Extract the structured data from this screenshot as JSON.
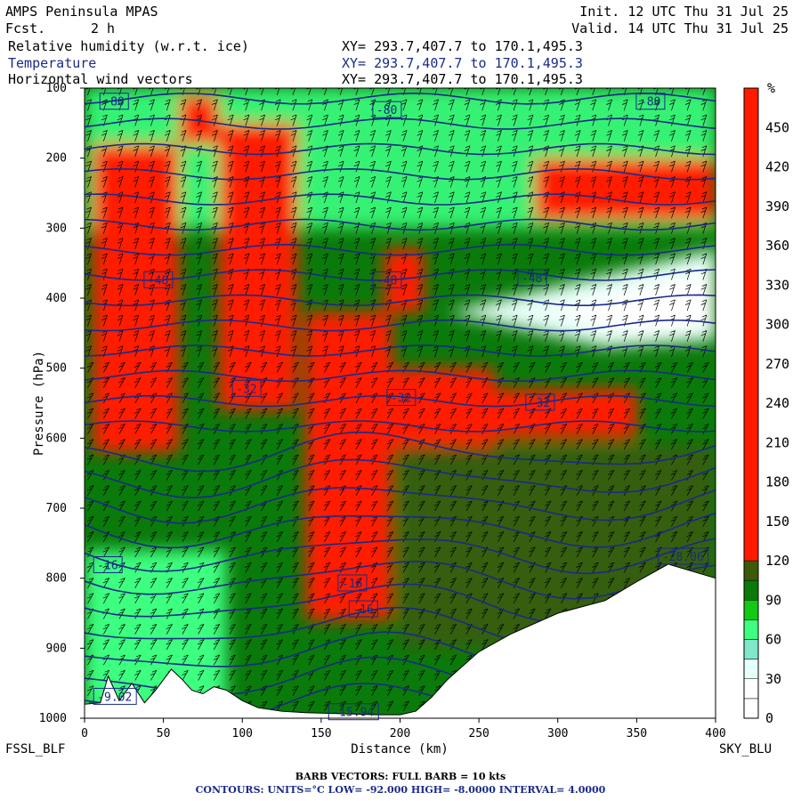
{
  "header": {
    "model": "AMPS Peninsula MPAS",
    "fcst_label": "Fcst.",
    "fcst_value": "2 h",
    "init": "Init. 12 UTC Thu 31 Jul 25",
    "valid": "Valid. 14 UTC Thu 31 Jul 25",
    "fields": [
      {
        "name": "Relative humidity (w.r.t. ice)",
        "xy": "XY= 293.7,407.7 to 170.1,495.3",
        "color": "#000000"
      },
      {
        "name": "Temperature",
        "xy": "XY= 293.7,407.7 to 170.1,495.3",
        "color": "#1a2a8a"
      },
      {
        "name": "Horizontal wind vectors",
        "xy": "XY= 293.7,407.7 to 170.1,495.3",
        "color": "#000000"
      }
    ]
  },
  "chart_data": {
    "type": "heatmap",
    "xlabel": "Distance (km)",
    "ylabel": "Pressure (hPa)",
    "xlim": [
      0,
      400
    ],
    "ylim": [
      1000,
      100
    ],
    "x_ticks": [
      0,
      50,
      100,
      150,
      200,
      250,
      300,
      350,
      400
    ],
    "y_ticks": [
      100,
      200,
      300,
      400,
      500,
      600,
      700,
      800,
      900,
      1000
    ],
    "left_endpoint": "FSSL_BLF",
    "right_endpoint": "SKY_BLU",
    "colorbar": {
      "unit": "%",
      "ticks": [
        0,
        30,
        60,
        90,
        120,
        150,
        180,
        210,
        240,
        270,
        300,
        330,
        360,
        390,
        420,
        450
      ],
      "levels": [
        {
          "from": 0,
          "to": 15,
          "color": "#ffffff"
        },
        {
          "from": 15,
          "to": 30,
          "color": "#ffffff"
        },
        {
          "from": 30,
          "to": 45,
          "color": "#e6fff8"
        },
        {
          "from": 45,
          "to": 60,
          "color": "#7ee8c8"
        },
        {
          "from": 60,
          "to": 75,
          "color": "#3cff80"
        },
        {
          "from": 75,
          "to": 90,
          "color": "#14c814"
        },
        {
          "from": 90,
          "to": 105,
          "color": "#0a7a0a"
        },
        {
          "from": 105,
          "to": 120,
          "color": "#3d5a0a"
        },
        {
          "from": 120,
          "to": 480,
          "color": "#ff1a00"
        }
      ]
    },
    "temperature_contours": {
      "units": "°C",
      "low": -92,
      "high": -8,
      "interval": 4,
      "labels": [
        {
          "text": "-80",
          "x": 12,
          "p": 120
        },
        {
          "text": "-80",
          "x": 185,
          "p": 132
        },
        {
          "text": "-80",
          "x": 352,
          "p": 120
        },
        {
          "text": "-48",
          "x": 40,
          "p": 375
        },
        {
          "text": "-48",
          "x": 185,
          "p": 375
        },
        {
          "text": "-48",
          "x": 277,
          "p": 372
        },
        {
          "text": "-32",
          "x": 96,
          "p": 530
        },
        {
          "text": "-32",
          "x": 194,
          "p": 543
        },
        {
          "text": "-32",
          "x": 282,
          "p": 550
        },
        {
          "text": "-16",
          "x": 8,
          "p": 782
        },
        {
          "text": "-16",
          "x": 163,
          "p": 808
        },
        {
          "text": "-16",
          "x": 170,
          "p": 845
        },
        {
          "text": "-28.06",
          "x": 366,
          "p": 770
        },
        {
          "text": "-9.02",
          "x": 8,
          "p": 970
        },
        {
          "text": "-15.94",
          "x": 157,
          "p": 992
        }
      ]
    },
    "terrain_profile": {
      "x": [
        0,
        10,
        15,
        22,
        30,
        38,
        45,
        55,
        62,
        68,
        75,
        82,
        90,
        100,
        110,
        125,
        140,
        155,
        170,
        185,
        200,
        210,
        220,
        230,
        250,
        270,
        300,
        330,
        350,
        370,
        385,
        400
      ],
      "p": [
        980,
        978,
        940,
        975,
        950,
        978,
        960,
        930,
        945,
        960,
        965,
        955,
        960,
        975,
        985,
        990,
        992,
        993,
        994,
        995,
        995,
        990,
        970,
        945,
        905,
        880,
        850,
        832,
        805,
        780,
        790,
        800
      ]
    },
    "rh_regions": [
      {
        "color": "#ff1a00",
        "x0": 5,
        "x1": 60,
        "p0": 180,
        "p1": 620
      },
      {
        "color": "#ff1a00",
        "x0": 85,
        "x1": 135,
        "p0": 150,
        "p1": 560
      },
      {
        "color": "#ff1a00",
        "x0": 140,
        "x1": 195,
        "p0": 420,
        "p1": 860
      },
      {
        "color": "#ff1a00",
        "x0": 190,
        "x1": 260,
        "p0": 500,
        "p1": 620
      },
      {
        "color": "#ff1a00",
        "x0": 240,
        "x1": 350,
        "p0": 530,
        "p1": 600
      },
      {
        "color": "#ff1a00",
        "x0": 285,
        "x1": 400,
        "p0": 200,
        "p1": 290
      },
      {
        "color": "#ff1a00",
        "x0": 190,
        "x1": 215,
        "p0": 330,
        "p1": 420
      },
      {
        "color": "#ff1a00",
        "x0": 60,
        "x1": 85,
        "p0": 110,
        "p1": 180
      }
    ],
    "barbs": {
      "full_barb_kts": 10
    }
  },
  "footer": {
    "barb_text": "BARB VECTORS:  FULL BARB = 10 kts",
    "contour_text": "CONTOURS:  UNITS=°C  LOW= -92.000      HIGH= -8.0000      INTERVAL=   4.0000"
  }
}
